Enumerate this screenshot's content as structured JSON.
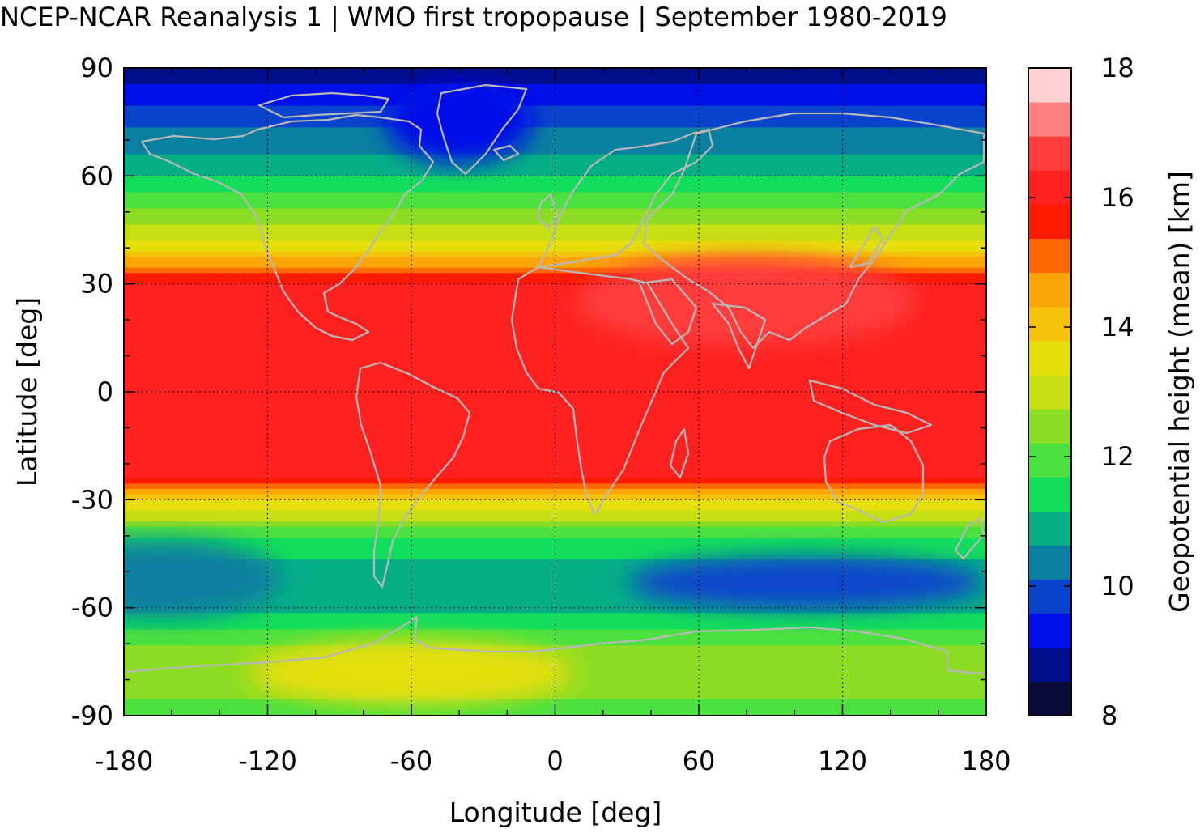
{
  "title": "NCEP-NCAR Reanalysis 1 | WMO first tropopause | September 1980-2019",
  "x_axis": {
    "label": "Longitude [deg]",
    "range": [
      -180,
      180
    ],
    "ticks": [
      -180,
      -120,
      -60,
      0,
      60,
      120,
      180
    ],
    "tick_labels": [
      "-180",
      "-120",
      "-60",
      "0",
      "60",
      "120",
      "180"
    ]
  },
  "y_axis": {
    "label": "Latitude [deg]",
    "range": [
      -90,
      90
    ],
    "ticks": [
      90,
      60,
      30,
      0,
      -30,
      -60,
      -90
    ],
    "tick_labels": [
      "90",
      "60",
      "30",
      "0",
      "-30",
      "-60",
      "-90"
    ]
  },
  "colorbar": {
    "label": "Geopotential height (mean) [km]",
    "range": [
      8,
      18
    ],
    "ticks": [
      18,
      16,
      14,
      12,
      10,
      8
    ],
    "tick_labels": [
      "18",
      "16",
      "14",
      "12",
      "10",
      "8"
    ],
    "colors_bottom_to_top": [
      "#0b0b3a",
      "#000e8c",
      "#0010e8",
      "#0a44cc",
      "#0a7fa0",
      "#06ae86",
      "#13dd5c",
      "#4be040",
      "#8ddd24",
      "#c6df14",
      "#e6de0a",
      "#f4c20c",
      "#faa508",
      "#ff6a00",
      "#ff1a00",
      "#ff2020",
      "#ff3c3c",
      "#ff8080",
      "#ffd0d0"
    ]
  },
  "chart_data": {
    "type": "heatmap",
    "title": "NCEP-NCAR Reanalysis 1 | WMO first tropopause | September 1980-2019",
    "xlabel": "Longitude [deg]",
    "ylabel": "Latitude [deg]",
    "xlim": [
      -180,
      180
    ],
    "ylim": [
      -90,
      90
    ],
    "colorbar_label": "Geopotential height (mean) [km]",
    "colorbar_range": [
      8,
      18
    ],
    "grid": true,
    "coastlines": true,
    "zonal_mean_profile_km": {
      "lat": [
        90,
        80,
        70,
        60,
        50,
        40,
        30,
        20,
        10,
        0,
        -10,
        -20,
        -25,
        -30,
        -40,
        -50,
        -60,
        -70,
        -80,
        -90
      ],
      "height": [
        8.6,
        9.6,
        10.3,
        11.2,
        12.3,
        13.6,
        15.9,
        16.2,
        16.3,
        16.3,
        16.3,
        16.2,
        15.8,
        13.8,
        11.8,
        10.8,
        11.0,
        12.2,
        12.6,
        11.8
      ]
    },
    "features": [
      {
        "name": "south-asia-maximum",
        "lon": 80,
        "lat": 25,
        "height": 16.9
      },
      {
        "name": "southern-ocean-minimum",
        "lon": 105,
        "lat": -53,
        "height": 9.6
      },
      {
        "name": "south-pacific-minimum",
        "lon": -165,
        "lat": -52,
        "height": 10.3
      },
      {
        "name": "antarctic-west-maximum",
        "lon": -60,
        "lat": -78,
        "height": 13.3
      },
      {
        "name": "greenland-minimum",
        "lon": -40,
        "lat": 75,
        "height": 9.2
      }
    ]
  }
}
